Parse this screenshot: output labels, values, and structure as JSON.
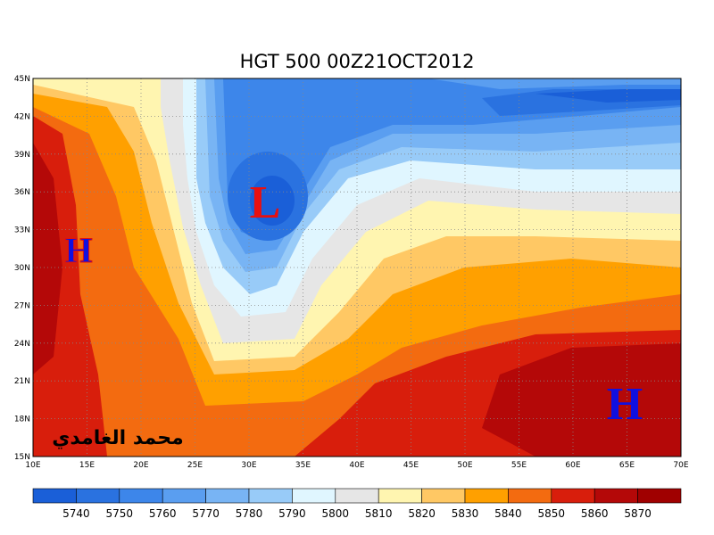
{
  "title": "HGT 500 00Z21OCT2012",
  "lat_ticks": [
    "45N",
    "42N",
    "39N",
    "36N",
    "33N",
    "30N",
    "27N",
    "24N",
    "21N",
    "18N",
    "15N"
  ],
  "lon_ticks": [
    "10E",
    "15E",
    "20E",
    "25E",
    "30E",
    "35E",
    "40E",
    "45E",
    "50E",
    "55E",
    "60E",
    "65E",
    "70E"
  ],
  "colorbar_labels": [
    5740,
    5750,
    5760,
    5770,
    5780,
    5790,
    5800,
    5810,
    5820,
    5830,
    5840,
    5850,
    5860,
    5870
  ],
  "markers": [
    {
      "label": "H"
    },
    {
      "label": "L"
    },
    {
      "label": "H"
    }
  ],
  "signature": "محمد الغامدي"
}
